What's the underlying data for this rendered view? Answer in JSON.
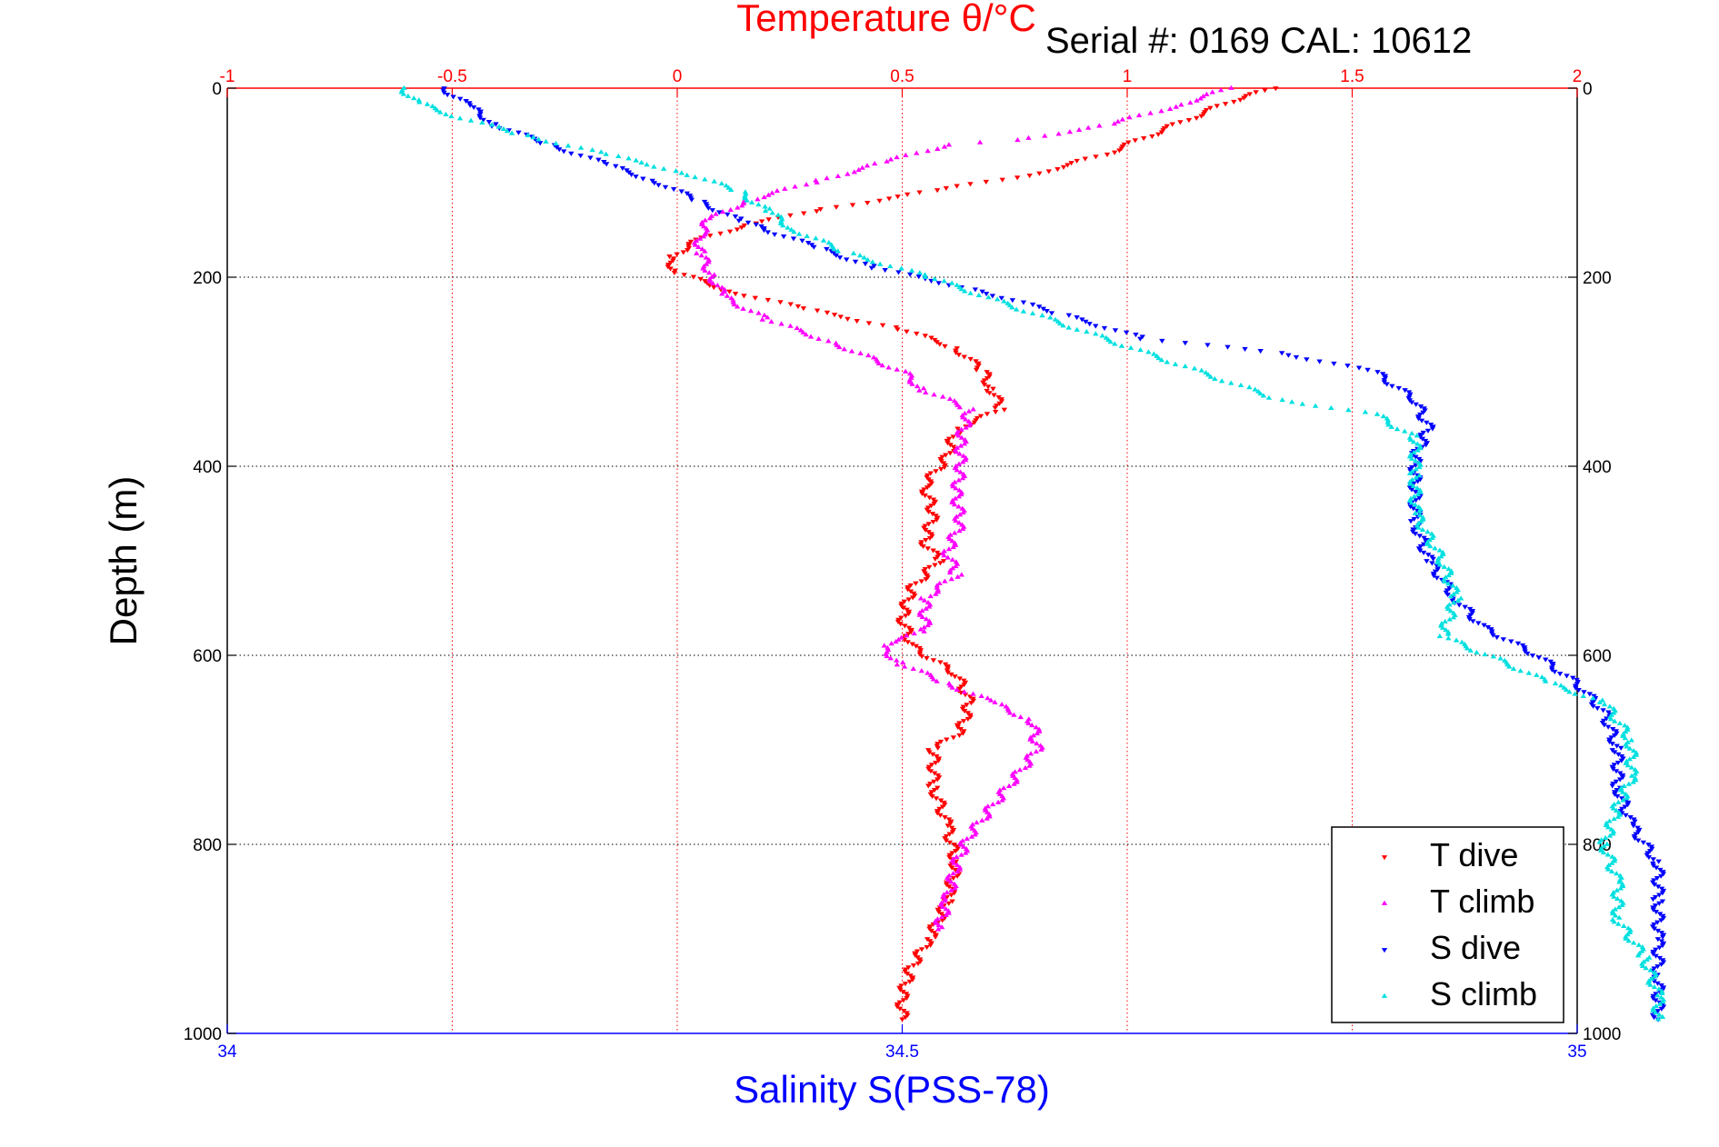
{
  "chart_data": {
    "type": "scatter",
    "title": "Temperature θ/°C",
    "subtitle": "Serial #: 0169 CAL: 10612",
    "xlabel": "Salinity S(PSS-78)",
    "ylabel": "Depth (m)",
    "temperature_axis": {
      "range": [
        -1,
        2
      ],
      "ticks": [
        "-1",
        "-0.5",
        "0",
        "0.5",
        "1",
        "1.5",
        "2"
      ]
    },
    "salinity_axis": {
      "range": [
        34,
        35
      ],
      "ticks": [
        "34",
        "34.5",
        "35"
      ]
    },
    "depth_axis": {
      "range": [
        0,
        1000
      ],
      "reversed": true,
      "ticks": [
        "0",
        "200",
        "400",
        "600",
        "800",
        "1000"
      ]
    },
    "grid": true,
    "legend": {
      "position": "bottom-right"
    },
    "series": [
      {
        "name": "T dive",
        "axis": "temperature",
        "color": "#ff0000",
        "marker": "triangle-down",
        "points": [
          [
            1.33,
            0
          ],
          [
            1.25,
            10
          ],
          [
            1.1,
            40
          ],
          [
            0.95,
            70
          ],
          [
            0.8,
            90
          ],
          [
            0.55,
            110
          ],
          [
            0.3,
            130
          ],
          [
            0.15,
            145
          ],
          [
            0.05,
            160
          ],
          [
            -0.02,
            180
          ],
          [
            0.0,
            195
          ],
          [
            0.12,
            215
          ],
          [
            0.3,
            235
          ],
          [
            0.5,
            255
          ],
          [
            0.62,
            275
          ],
          [
            0.68,
            300
          ],
          [
            0.7,
            320
          ],
          [
            0.72,
            340
          ],
          [
            0.62,
            360
          ],
          [
            0.6,
            390
          ],
          [
            0.55,
            420
          ],
          [
            0.57,
            450
          ],
          [
            0.55,
            480
          ],
          [
            0.58,
            500
          ],
          [
            0.52,
            530
          ],
          [
            0.5,
            560
          ],
          [
            0.52,
            590
          ],
          [
            0.62,
            620
          ],
          [
            0.65,
            650
          ],
          [
            0.63,
            680
          ],
          [
            0.57,
            700
          ],
          [
            0.57,
            740
          ],
          [
            0.6,
            780
          ],
          [
            0.62,
            820
          ],
          [
            0.6,
            860
          ],
          [
            0.56,
            900
          ],
          [
            0.52,
            930
          ],
          [
            0.5,
            960
          ],
          [
            0.5,
            985
          ]
        ]
      },
      {
        "name": "T climb",
        "axis": "temperature",
        "color": "#ff00ff",
        "marker": "triangle-up",
        "points": [
          [
            1.23,
            0
          ],
          [
            1.1,
            20
          ],
          [
            0.95,
            40
          ],
          [
            0.75,
            55
          ],
          [
            0.6,
            60
          ],
          [
            0.45,
            80
          ],
          [
            0.3,
            100
          ],
          [
            0.15,
            120
          ],
          [
            0.07,
            140
          ],
          [
            0.05,
            155
          ],
          [
            0.05,
            175
          ],
          [
            0.08,
            200
          ],
          [
            0.1,
            220
          ],
          [
            0.2,
            245
          ],
          [
            0.35,
            270
          ],
          [
            0.5,
            300
          ],
          [
            0.55,
            320
          ],
          [
            0.65,
            340
          ],
          [
            0.63,
            370
          ],
          [
            0.63,
            400
          ],
          [
            0.62,
            430
          ],
          [
            0.63,
            460
          ],
          [
            0.6,
            490
          ],
          [
            0.62,
            515
          ],
          [
            0.55,
            540
          ],
          [
            0.55,
            575
          ],
          [
            0.45,
            590
          ],
          [
            0.5,
            610
          ],
          [
            0.6,
            630
          ],
          [
            0.7,
            650
          ],
          [
            0.79,
            670
          ],
          [
            0.8,
            700
          ],
          [
            0.75,
            730
          ],
          [
            0.7,
            760
          ],
          [
            0.65,
            790
          ],
          [
            0.62,
            820
          ],
          [
            0.6,
            860
          ],
          [
            0.58,
            890
          ]
        ]
      },
      {
        "name": "S dive",
        "axis": "salinity",
        "color": "#0000ff",
        "marker": "triangle-down",
        "points": [
          [
            34.16,
            0
          ],
          [
            34.18,
            20
          ],
          [
            34.2,
            40
          ],
          [
            34.24,
            60
          ],
          [
            34.28,
            80
          ],
          [
            34.32,
            100
          ],
          [
            34.35,
            120
          ],
          [
            34.38,
            140
          ],
          [
            34.4,
            150
          ],
          [
            34.44,
            170
          ],
          [
            34.48,
            190
          ],
          [
            34.56,
            215
          ],
          [
            34.62,
            240
          ],
          [
            34.68,
            265
          ],
          [
            34.78,
            280
          ],
          [
            34.85,
            300
          ],
          [
            34.88,
            330
          ],
          [
            34.89,
            360
          ],
          [
            34.88,
            390
          ],
          [
            34.88,
            420
          ],
          [
            34.88,
            460
          ],
          [
            34.89,
            500
          ],
          [
            34.91,
            540
          ],
          [
            34.93,
            570
          ],
          [
            34.97,
            600
          ],
          [
            35.0,
            630
          ],
          [
            35.02,
            660
          ],
          [
            35.03,
            700
          ],
          [
            35.03,
            740
          ],
          [
            35.04,
            780
          ],
          [
            35.06,
            820
          ],
          [
            35.06,
            860
          ],
          [
            35.06,
            900
          ],
          [
            35.06,
            940
          ],
          [
            35.06,
            985
          ]
        ]
      },
      {
        "name": "S climb",
        "axis": "salinity",
        "color": "#00e0e0",
        "marker": "triangle-up",
        "points": [
          [
            34.13,
            0
          ],
          [
            34.14,
            15
          ],
          [
            34.17,
            30
          ],
          [
            34.22,
            50
          ],
          [
            34.28,
            70
          ],
          [
            34.34,
            90
          ],
          [
            34.38,
            110
          ],
          [
            34.4,
            130
          ],
          [
            34.42,
            150
          ],
          [
            34.46,
            175
          ],
          [
            34.52,
            200
          ],
          [
            34.58,
            230
          ],
          [
            34.64,
            260
          ],
          [
            34.7,
            290
          ],
          [
            34.78,
            330
          ],
          [
            34.85,
            345
          ],
          [
            34.88,
            370
          ],
          [
            34.88,
            410
          ],
          [
            34.88,
            450
          ],
          [
            34.9,
            500
          ],
          [
            34.91,
            540
          ],
          [
            34.9,
            580
          ],
          [
            34.95,
            610
          ],
          [
            34.98,
            630
          ],
          [
            35.02,
            650
          ],
          [
            35.04,
            690
          ],
          [
            35.04,
            730
          ],
          [
            35.03,
            760
          ],
          [
            35.02,
            800
          ],
          [
            35.03,
            840
          ],
          [
            35.03,
            880
          ],
          [
            35.05,
            920
          ],
          [
            35.06,
            960
          ],
          [
            35.06,
            985
          ]
        ]
      }
    ]
  }
}
